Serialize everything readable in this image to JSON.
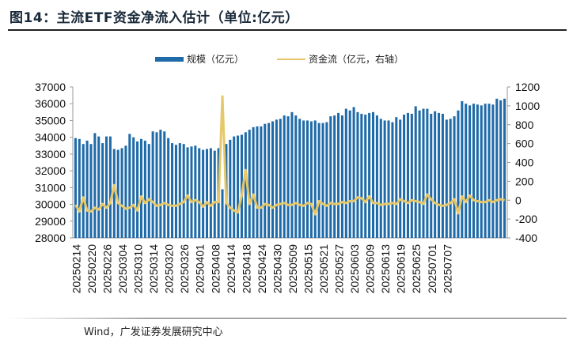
{
  "title": "图14：主流ETF资金净流入估计（单位:亿元）",
  "source": "Wind，广发证券发展研究中心",
  "colors": {
    "bar": "#1f6aa8",
    "line": "#e6c86a",
    "axis": "#999999"
  },
  "chart_data": {
    "type": "bar+line",
    "title": "主流ETF资金净流入估计（单位:亿元）",
    "legend_position": "top",
    "left_axis": {
      "label": "",
      "ylim": [
        28000,
        37000
      ],
      "ticks": [
        "37000",
        "36000",
        "35000",
        "34000",
        "33000",
        "32000",
        "31000",
        "30000",
        "29000",
        "28000"
      ],
      "tick_values": [
        37000,
        36000,
        35000,
        34000,
        33000,
        32000,
        31000,
        30000,
        29000,
        28000
      ]
    },
    "right_axis": {
      "label": "",
      "ylim": [
        -400,
        1200
      ],
      "ticks": [
        "1200",
        "1000",
        "800",
        "600",
        "400",
        "200",
        "0",
        "-200",
        "-400"
      ],
      "tick_values": [
        1200,
        1000,
        800,
        600,
        400,
        200,
        0,
        -200,
        -400
      ]
    },
    "x_tick_labels": [
      "20250214",
      "20250220",
      "20250226",
      "20250304",
      "20250310",
      "20250314",
      "20250320",
      "20250326",
      "20250401",
      "20250408",
      "20250414",
      "20250418",
      "20250424",
      "20250430",
      "20250509",
      "20250515",
      "20250521",
      "20250527",
      "20250603",
      "20250609",
      "20250613",
      "20250619",
      "20250625",
      "20250701",
      "20250707"
    ],
    "series": [
      {
        "name": "规模（亿元）",
        "type": "bar",
        "axis": "left",
        "values": [
          33950,
          33900,
          33600,
          33800,
          33600,
          34250,
          34050,
          33650,
          34050,
          34050,
          33300,
          33250,
          33350,
          33500,
          34200,
          34000,
          33750,
          33900,
          33800,
          33600,
          34350,
          34300,
          34450,
          34350,
          33950,
          33650,
          33550,
          33650,
          33600,
          33400,
          33450,
          33500,
          33350,
          33250,
          33300,
          33350,
          33200,
          33350,
          30900,
          33600,
          33850,
          34050,
          34100,
          34150,
          34300,
          34450,
          34600,
          34650,
          34650,
          34800,
          34850,
          34950,
          35050,
          35100,
          35300,
          35250,
          35500,
          35300,
          35100,
          35000,
          35000,
          34950,
          35000,
          34850,
          34850,
          34900,
          35250,
          35300,
          35450,
          35300,
          35700,
          35600,
          35800,
          35500,
          35400,
          35350,
          35450,
          35500,
          35300,
          35100,
          35000,
          35000,
          34900,
          35200,
          35050,
          35350,
          35450,
          35400,
          35850,
          35600,
          35700,
          35700,
          35400,
          35550,
          35450,
          35400,
          35050,
          35100,
          35250,
          35600,
          36150,
          36000,
          35900,
          36000,
          35950,
          35900,
          36000,
          36000,
          35950,
          36300,
          36200,
          36300
        ]
      },
      {
        "name": "资金流（亿元，右轴）",
        "type": "line",
        "axis": "right",
        "values": [
          -50,
          -120,
          30,
          -110,
          -120,
          -80,
          -100,
          -40,
          -80,
          -30,
          160,
          -30,
          -60,
          -90,
          -80,
          -50,
          -110,
          40,
          -30,
          10,
          -20,
          -60,
          -50,
          -30,
          -50,
          -60,
          -60,
          -40,
          -20,
          50,
          -20,
          0,
          -20,
          -70,
          -20,
          -60,
          -20,
          -20,
          1100,
          -30,
          -80,
          -110,
          -130,
          50,
          320,
          -40,
          60,
          -80,
          -80,
          -40,
          -50,
          -80,
          -50,
          -40,
          -30,
          -50,
          -50,
          -30,
          -50,
          -60,
          -30,
          -40,
          -150,
          -10,
          -40,
          -60,
          -30,
          -40,
          -40,
          -20,
          -30,
          -10,
          -10,
          30,
          20,
          -20,
          40,
          -30,
          -30,
          -50,
          -40,
          -40,
          -30,
          -40,
          10,
          -10,
          -30,
          0,
          -10,
          -20,
          -40,
          60,
          10,
          -30,
          -50,
          -60,
          -50,
          -30,
          10,
          -140,
          40,
          -20,
          50,
          0,
          -10,
          -20,
          -20,
          0,
          -20,
          0,
          10,
          0
        ]
      }
    ]
  }
}
